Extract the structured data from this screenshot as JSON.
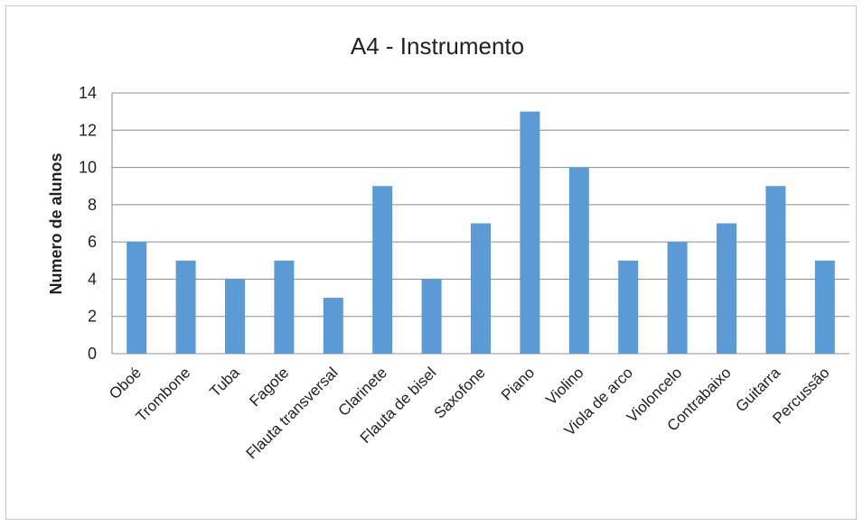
{
  "chart_data": {
    "type": "bar",
    "title": "A4 - Instrumento",
    "xlabel": "",
    "ylabel": "Numero de alunos",
    "ylim": [
      0,
      14
    ],
    "yticks": [
      0,
      2,
      4,
      6,
      8,
      10,
      12,
      14
    ],
    "grid": true,
    "legend": "none",
    "bar_color": "#5b9bd5",
    "categories": [
      "Oboé",
      "Trombone",
      "Tuba",
      "Fagote",
      "Flauta transversal",
      "Clarinete",
      "Flauta de bisel",
      "Saxofone",
      "Piano",
      "Violino",
      "Viola de arco",
      "Violoncelo",
      "Contrabaixo",
      "Guitarra",
      "Percussão"
    ],
    "values": [
      6,
      5,
      4,
      5,
      3,
      9,
      4,
      7,
      13,
      10,
      5,
      6,
      7,
      9,
      5
    ]
  }
}
